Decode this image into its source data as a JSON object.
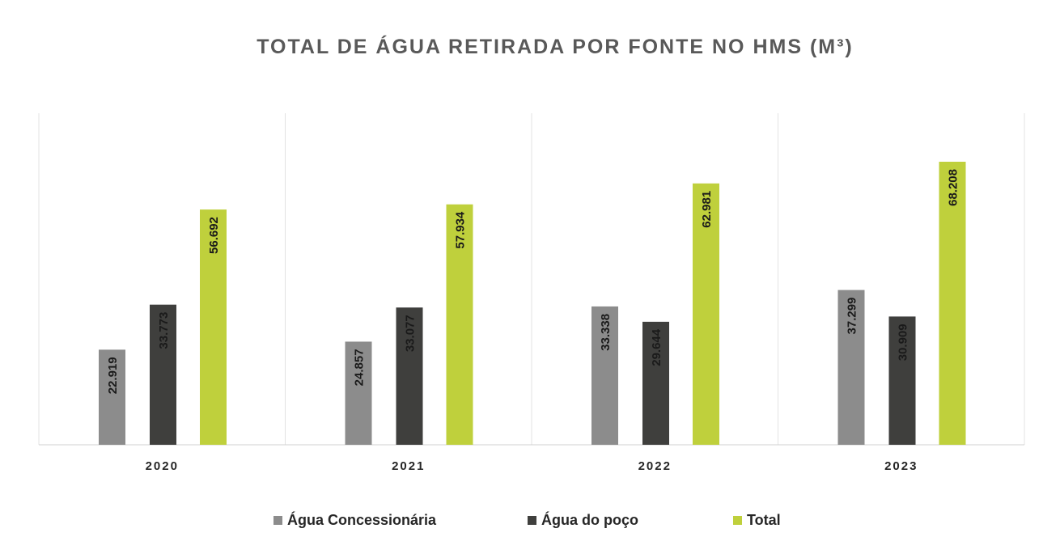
{
  "chart_data": {
    "type": "bar",
    "title": "TOTAL DE ÁGUA RETIRADA POR FONTE NO HMS (M³)",
    "xlabel": "",
    "ylabel": "",
    "categories": [
      "2020",
      "2021",
      "2022",
      "2023"
    ],
    "series": [
      {
        "name": "Água Concessionária",
        "color": "#8c8c8c",
        "values": [
          22919,
          24857,
          33338,
          37299
        ],
        "labels": [
          "22.919",
          "24.857",
          "33.338",
          "37.299"
        ]
      },
      {
        "name": "Água do poço",
        "color": "#3f3f3d",
        "values": [
          33773,
          33077,
          29644,
          30909
        ],
        "labels": [
          "33.773",
          "33.077",
          "29.644",
          "30.909"
        ]
      },
      {
        "name": "Total",
        "color": "#bfd03c",
        "values": [
          56692,
          57934,
          62981,
          68208
        ],
        "labels": [
          "56.692",
          "57.934",
          "62.981",
          "68.208"
        ]
      }
    ],
    "ylim": [
      0,
      80000
    ],
    "grid": "vertical-category-dividers",
    "legend": "bottom",
    "data_label_orientation": "vertical"
  }
}
